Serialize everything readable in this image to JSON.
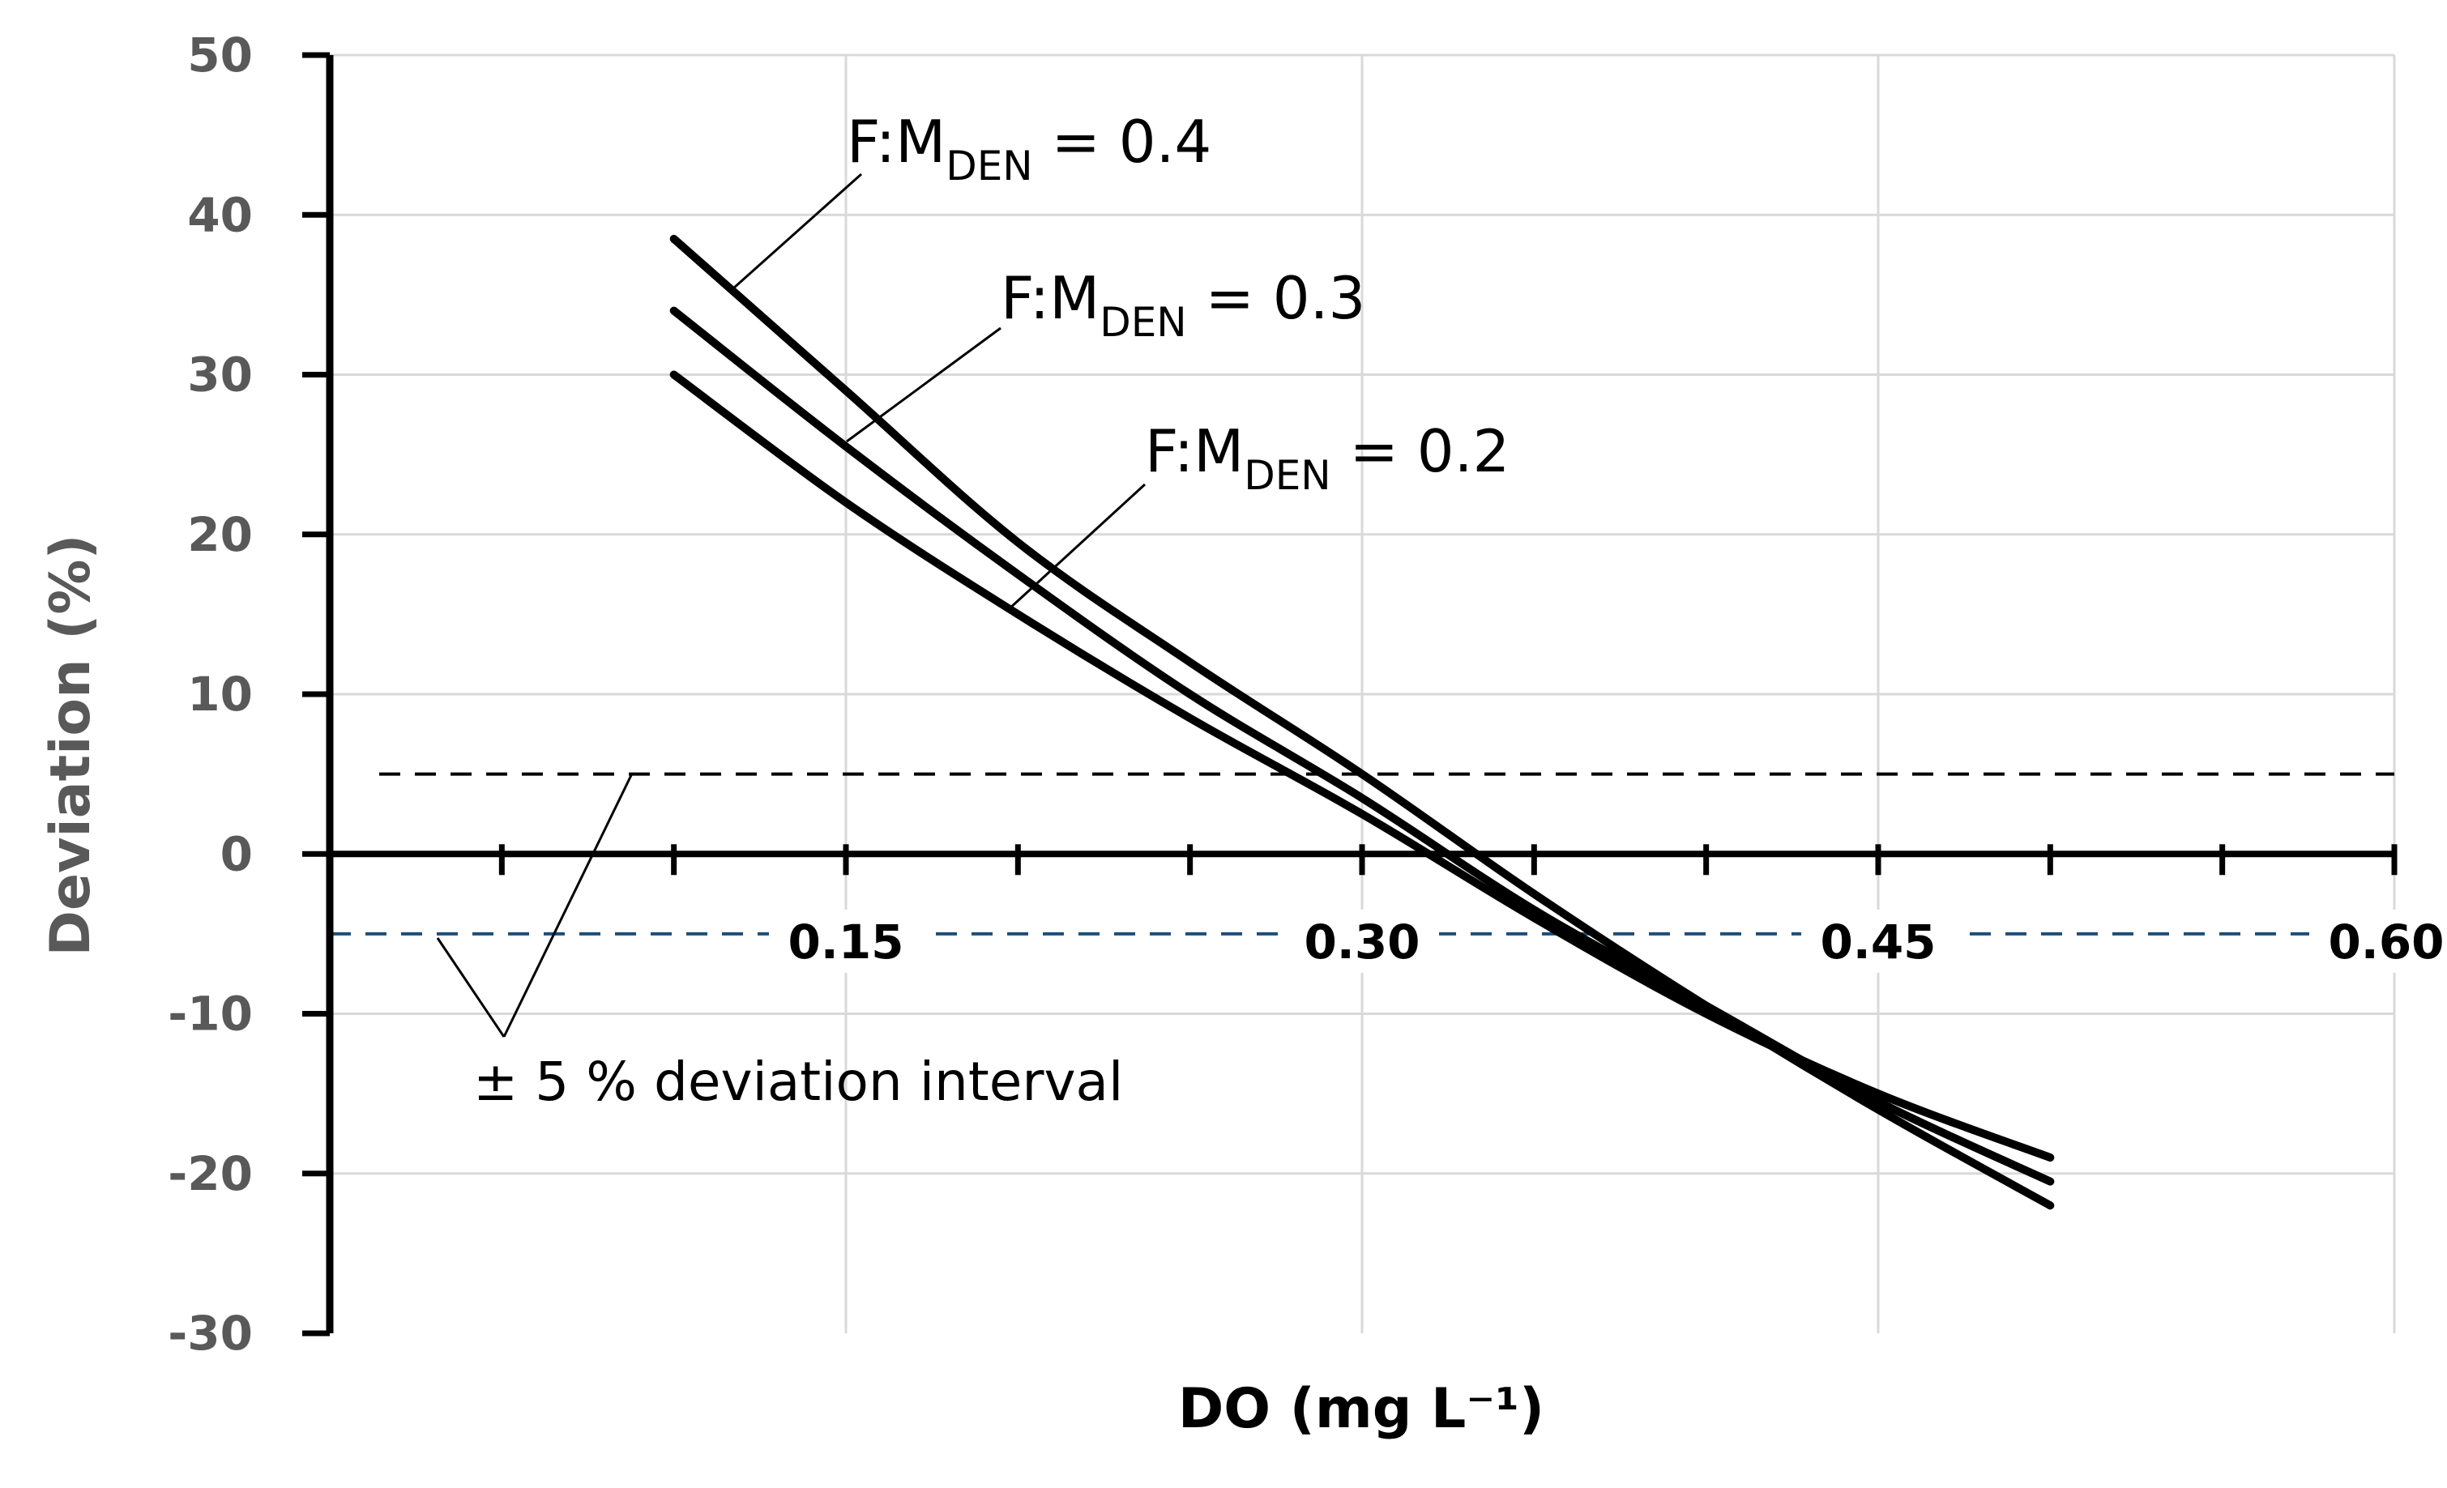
{
  "chart_data": {
    "type": "line",
    "title": "",
    "xlabel": "DO (mg L⁻¹)",
    "ylabel": "Deviation (%)",
    "xlim": [
      0,
      0.6
    ],
    "ylim": [
      -30,
      50
    ],
    "x_ticks": [
      0.15,
      0.3,
      0.45,
      0.6
    ],
    "x_tick_labels": [
      "0.15",
      "0.30",
      "0.45",
      "0.60"
    ],
    "x_minor_tick_step": 0.05,
    "y_ticks": [
      -30,
      -20,
      -10,
      0,
      10,
      20,
      30,
      40,
      50
    ],
    "y_tick_labels": [
      "-30",
      "-20",
      "-10",
      "0",
      "10",
      "20",
      "30",
      "40",
      "50"
    ],
    "grid": true,
    "series": [
      {
        "name": "F:M_DEN = 0.4",
        "label_main": "F:M",
        "label_sub": "DEN",
        "label_value": " = 0.4",
        "x": [
          0.1,
          0.15,
          0.2,
          0.25,
          0.3,
          0.35,
          0.4,
          0.45,
          0.5
        ],
        "values": [
          38.5,
          29,
          19.5,
          12,
          5,
          -2.5,
          -9.5,
          -16,
          -22
        ]
      },
      {
        "name": "F:M_DEN = 0.3",
        "label_main": "F:M",
        "label_sub": "DEN",
        "label_value": " = 0.3",
        "x": [
          0.1,
          0.15,
          0.2,
          0.25,
          0.3,
          0.35,
          0.4,
          0.45,
          0.5
        ],
        "values": [
          34,
          25.5,
          17.5,
          10,
          3.5,
          -3.5,
          -9.5,
          -15.5,
          -20.5
        ]
      },
      {
        "name": "F:M_DEN = 0.2",
        "label_main": "F:M",
        "label_sub": "DEN",
        "label_value": " = 0.2",
        "x": [
          0.1,
          0.15,
          0.2,
          0.25,
          0.3,
          0.35,
          0.4,
          0.45,
          0.5
        ],
        "values": [
          30,
          22,
          15,
          8.5,
          2.5,
          -4,
          -10,
          -15,
          -19
        ]
      }
    ],
    "reference_lines": [
      {
        "name": "upper-deviation-limit",
        "y": 5,
        "color": "#000000",
        "style": "dashed"
      },
      {
        "name": "lower-deviation-limit",
        "y": -5,
        "color": "#1f4e79",
        "style": "dashed"
      }
    ],
    "interval_label": "± 5 % deviation interval",
    "colors": {
      "series": "#000000",
      "grid": "#d9d9d9",
      "axis": "#000000",
      "ytick": "#595959",
      "ylabel": "#595959",
      "xlabel": "#000000"
    }
  }
}
